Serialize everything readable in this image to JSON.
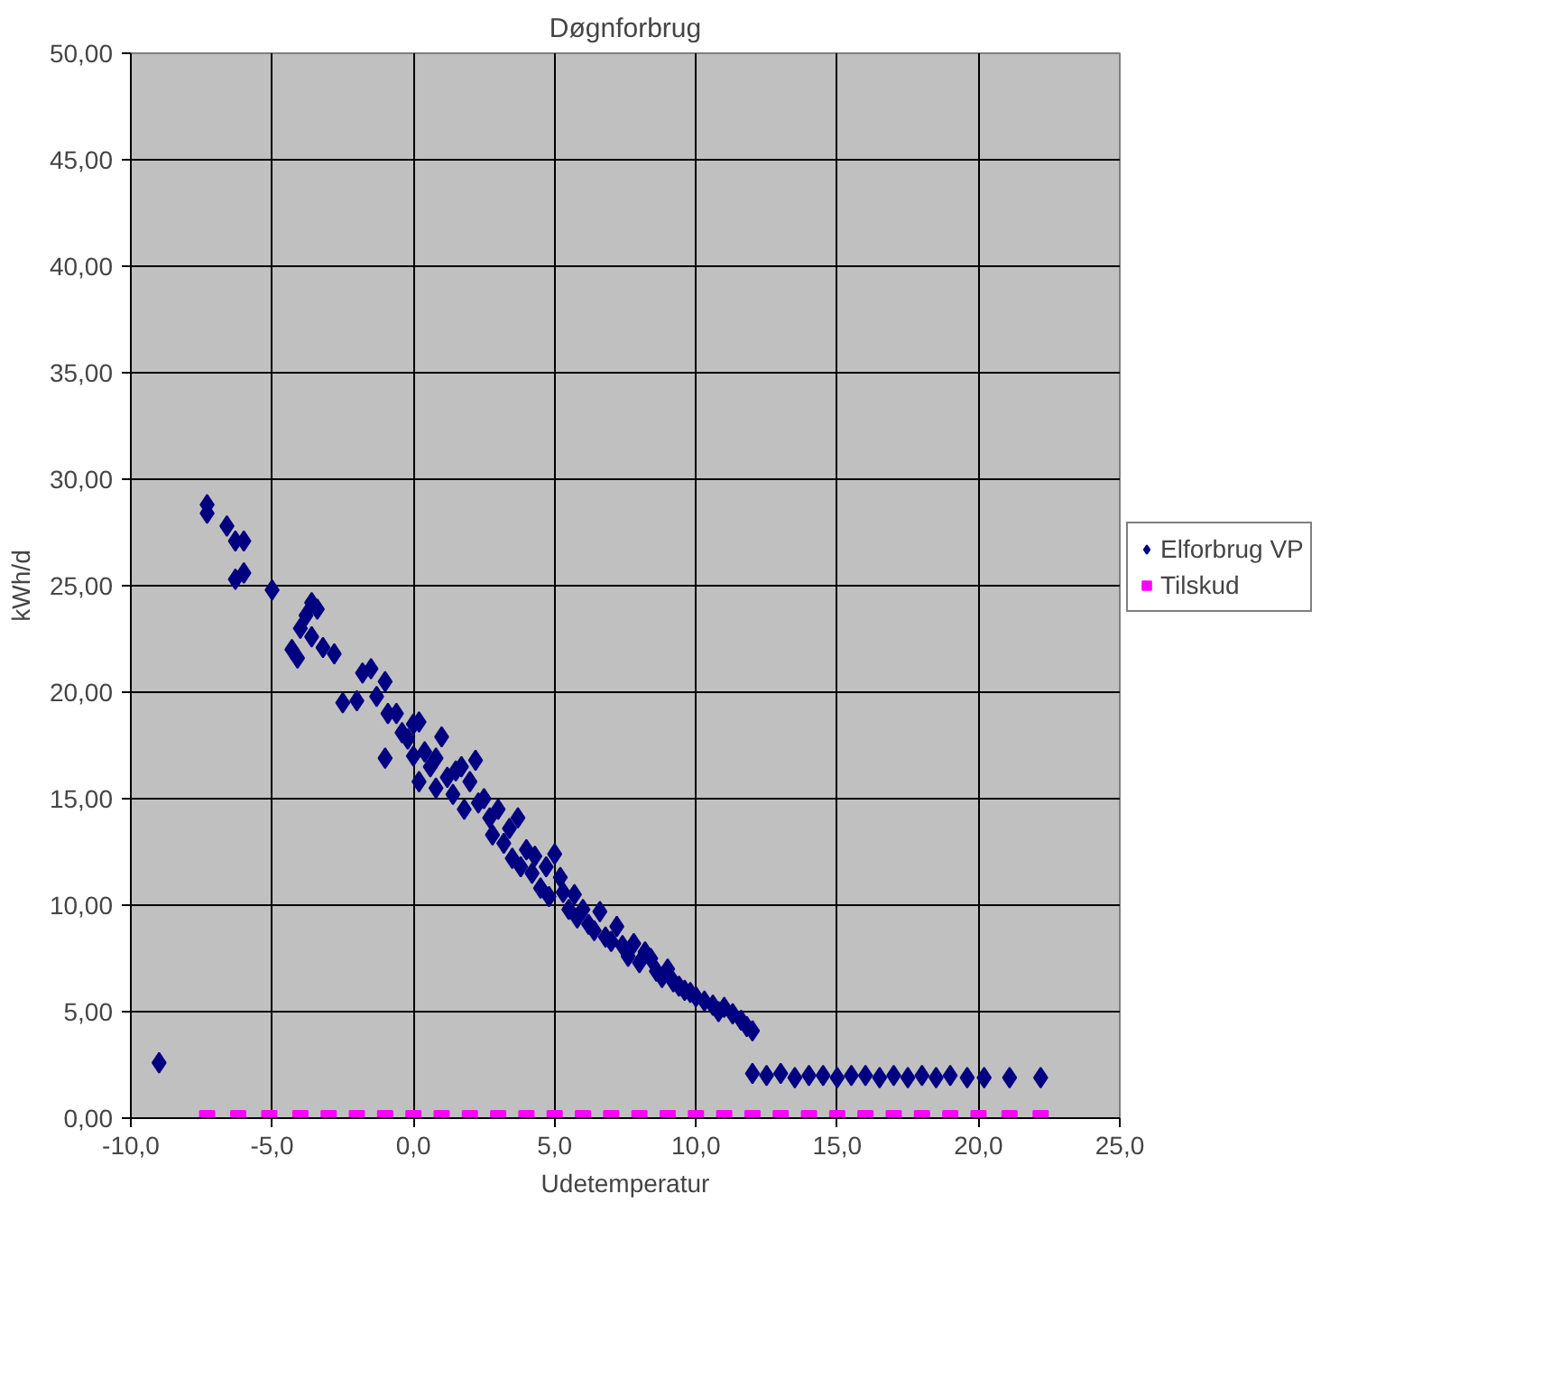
{
  "chart_data": {
    "type": "scatter",
    "title": "Døgnforbrug",
    "xlabel": "Udetemperatur",
    "ylabel": "kWh/d",
    "xlim": [
      -10,
      25
    ],
    "ylim": [
      0,
      50
    ],
    "xticks": [
      {
        "value": -10,
        "label": "-10,0"
      },
      {
        "value": -5,
        "label": "-5,0"
      },
      {
        "value": 0,
        "label": "0,0"
      },
      {
        "value": 5,
        "label": "5,0"
      },
      {
        "value": 10,
        "label": "10,0"
      },
      {
        "value": 15,
        "label": "15,0"
      },
      {
        "value": 20,
        "label": "20,0"
      },
      {
        "value": 25,
        "label": "25,0"
      }
    ],
    "yticks": [
      {
        "value": 0,
        "label": "0,00"
      },
      {
        "value": 5,
        "label": "5,00"
      },
      {
        "value": 10,
        "label": "10,00"
      },
      {
        "value": 15,
        "label": "15,00"
      },
      {
        "value": 20,
        "label": "20,00"
      },
      {
        "value": 25,
        "label": "25,00"
      },
      {
        "value": 30,
        "label": "30,00"
      },
      {
        "value": 35,
        "label": "35,00"
      },
      {
        "value": 40,
        "label": "40,00"
      },
      {
        "value": 45,
        "label": "45,00"
      },
      {
        "value": 50,
        "label": "50,00"
      }
    ],
    "grid": true,
    "legend": "right",
    "series": [
      {
        "name": "Elforbrug VP",
        "color": "#000080",
        "marker": "diamond",
        "x": [
          -9.0,
          -7.3,
          -7.3,
          -6.6,
          -6.3,
          -6.0,
          -6.0,
          -6.3,
          -5.0,
          -4.3,
          -4.1,
          -4.0,
          -3.8,
          -3.6,
          -3.4,
          -3.6,
          -3.2,
          -2.8,
          -2.5,
          -2.0,
          -1.8,
          -1.5,
          -1.3,
          -1.0,
          -0.9,
          -1.0,
          -0.6,
          -0.4,
          -0.2,
          0.0,
          0.2,
          0.0,
          0.2,
          0.4,
          0.6,
          0.8,
          0.8,
          1.0,
          1.2,
          1.4,
          1.5,
          1.7,
          1.8,
          2.0,
          2.2,
          2.3,
          2.5,
          2.7,
          2.8,
          3.0,
          3.2,
          3.4,
          3.5,
          3.7,
          3.8,
          4.0,
          4.2,
          4.3,
          4.5,
          4.7,
          4.8,
          5.0,
          5.2,
          5.3,
          5.5,
          5.7,
          5.8,
          6.0,
          6.2,
          6.4,
          6.6,
          6.8,
          7.0,
          7.2,
          7.4,
          7.6,
          7.8,
          8.0,
          8.2,
          8.4,
          8.6,
          8.8,
          9.0,
          9.2,
          9.4,
          9.6,
          9.8,
          10.0,
          10.3,
          10.6,
          10.8,
          11.0,
          11.3,
          11.6,
          11.8,
          12.0,
          12.0,
          12.5,
          13.0,
          13.5,
          14.0,
          14.5,
          15.0,
          15.5,
          16.0,
          16.5,
          17.0,
          17.5,
          18.0,
          18.5,
          19.0,
          19.6,
          20.2,
          21.1,
          22.2
        ],
        "values": [
          2.6,
          28.8,
          28.4,
          27.8,
          27.1,
          27.1,
          25.6,
          25.3,
          24.8,
          22.0,
          21.6,
          23.0,
          23.6,
          24.2,
          23.9,
          22.6,
          22.1,
          21.8,
          19.5,
          19.6,
          20.9,
          21.1,
          19.8,
          20.5,
          19.0,
          16.9,
          19.0,
          18.1,
          17.8,
          18.5,
          18.6,
          17.0,
          15.8,
          17.2,
          16.5,
          16.9,
          15.5,
          17.9,
          16.0,
          15.2,
          16.3,
          16.5,
          14.5,
          15.8,
          16.8,
          14.8,
          15.0,
          14.1,
          13.3,
          14.5,
          12.9,
          13.6,
          12.2,
          14.1,
          11.8,
          12.6,
          11.5,
          12.3,
          10.8,
          11.8,
          10.4,
          12.4,
          11.3,
          10.6,
          9.8,
          10.5,
          9.4,
          9.8,
          9.1,
          8.8,
          9.7,
          8.5,
          8.3,
          9.0,
          8.1,
          7.6,
          8.2,
          7.3,
          7.8,
          7.5,
          6.9,
          6.6,
          7.0,
          6.4,
          6.2,
          6.0,
          5.9,
          5.7,
          5.5,
          5.3,
          5.0,
          5.2,
          4.9,
          4.6,
          4.3,
          4.1,
          2.1,
          2.0,
          2.1,
          1.9,
          2.0,
          2.0,
          1.9,
          2.0,
          2.0,
          1.9,
          2.0,
          1.9,
          2.0,
          1.9,
          2.0,
          1.9,
          1.9,
          1.9,
          1.9
        ]
      },
      {
        "name": "Tilskud",
        "color": "#ff00ff",
        "marker": "square",
        "x": [
          -7.3,
          -6.2,
          -5.1,
          -4.0,
          -3.0,
          -2.0,
          -1.0,
          0.0,
          1.0,
          2.0,
          3.0,
          4.0,
          5.0,
          6.0,
          7.0,
          8.0,
          9.0,
          10.0,
          11.0,
          12.0,
          13.0,
          14.0,
          15.0,
          16.0,
          17.0,
          18.0,
          19.0,
          20.0,
          21.1,
          22.2
        ],
        "values": [
          0,
          0,
          0,
          0,
          0,
          0,
          0,
          0,
          0,
          0,
          0,
          0,
          0,
          0,
          0,
          0,
          0,
          0,
          0,
          0,
          0,
          0,
          0,
          0,
          0,
          0,
          0,
          0,
          0,
          0
        ]
      }
    ]
  }
}
